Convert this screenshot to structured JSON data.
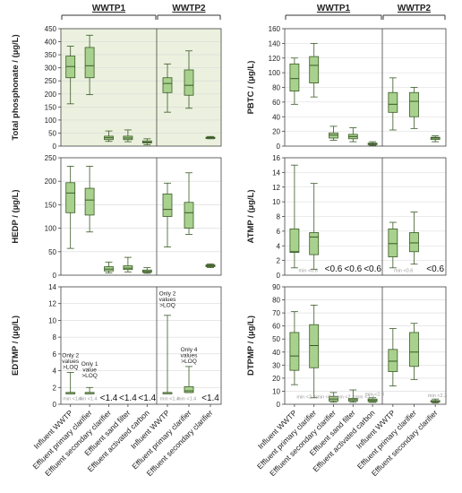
{
  "groups": {
    "left": [
      {
        "label": "WWTP1",
        "cats": 5
      },
      {
        "label": "WWTP2",
        "cats": 3
      }
    ],
    "right": [
      {
        "label": "WWTP1",
        "cats": 5
      },
      {
        "label": "WWTP2",
        "cats": 3
      }
    ]
  },
  "categories": {
    "left": [
      "Influent WWTP",
      "Effluent primary clarifier",
      "Effluent secondary clarifier",
      "Effluent sand filter",
      "Effluent activated carbon",
      "Influent WWTP",
      "Effluent primary clarifier",
      "Effluent secondary clarifier"
    ],
    "right": [
      "Influent WWTP",
      "Effluent primary clarifier",
      "Effluent secondary clarifier",
      "Effluent sand filter",
      "Effluent activated carbon",
      "Influent WWTP",
      "Effluent primary clarifier",
      "Effluent secondary clarifier"
    ]
  },
  "colors": {
    "box_fill": "#a9d18e",
    "box_stroke": "#3a5a26",
    "highlight": "#ebf1de",
    "axis": "#444444",
    "grid": "#d9d9d9",
    "note": "#9a9a9a"
  },
  "chart_data": [
    {
      "id": "total-phosphonate",
      "type": "box",
      "ylabel": "Total phosphonate / (µg/L)",
      "ylim": [
        0,
        450
      ],
      "yticks": [
        0,
        50,
        100,
        150,
        200,
        250,
        300,
        350,
        400,
        450
      ],
      "highlight": true,
      "boxes": [
        {
          "index": 0,
          "min": 162,
          "q1": 262,
          "median": 305,
          "q3": 345,
          "max": 383
        },
        {
          "index": 1,
          "min": 197,
          "q1": 262,
          "median": 308,
          "q3": 378,
          "max": 425
        },
        {
          "index": 2,
          "min": 18,
          "q1": 25,
          "median": 32,
          "q3": 38,
          "max": 58
        },
        {
          "index": 3,
          "min": 17,
          "q1": 25,
          "median": 31,
          "q3": 38,
          "max": 62
        },
        {
          "index": 4,
          "min": 5,
          "q1": 12,
          "median": 15,
          "q3": 20,
          "max": 28
        },
        {
          "index": 5,
          "min": 130,
          "q1": 205,
          "median": 240,
          "q3": 262,
          "max": 315
        },
        {
          "index": 6,
          "min": 145,
          "q1": 195,
          "median": 233,
          "q3": 292,
          "max": 365
        },
        {
          "index": 7,
          "min": 28,
          "q1": 30,
          "median": 32,
          "q3": 34,
          "max": 37
        }
      ],
      "texts": []
    },
    {
      "id": "pbtc",
      "type": "box",
      "ylabel": "PBTC / (µg/L)",
      "ylim": [
        0,
        160
      ],
      "yticks": [
        0,
        20,
        40,
        60,
        80,
        100,
        120,
        140,
        160
      ],
      "highlight": false,
      "boxes": [
        {
          "index": 0,
          "min": 57,
          "q1": 75,
          "median": 92,
          "q3": 112,
          "max": 120
        },
        {
          "index": 1,
          "min": 67,
          "q1": 86,
          "median": 110,
          "q3": 122,
          "max": 140
        },
        {
          "index": 2,
          "min": 8,
          "q1": 11,
          "median": 15,
          "q3": 18,
          "max": 27
        },
        {
          "index": 3,
          "min": 6,
          "q1": 10,
          "median": 13,
          "q3": 16,
          "max": 25
        },
        {
          "index": 4,
          "min": 1,
          "q1": 2,
          "median": 3,
          "q3": 4,
          "max": 6
        },
        {
          "index": 5,
          "min": 22,
          "q1": 46,
          "median": 57,
          "q3": 73,
          "max": 93
        },
        {
          "index": 6,
          "min": 24,
          "q1": 40,
          "median": 61,
          "q3": 73,
          "max": 80
        },
        {
          "index": 7,
          "min": 6,
          "q1": 9,
          "median": 11,
          "q3": 12,
          "max": 14
        }
      ],
      "texts": []
    },
    {
      "id": "hedp",
      "type": "box",
      "ylabel": "HEDP / (µg/L)",
      "ylim": [
        0,
        250
      ],
      "yticks": [
        0,
        50,
        100,
        150,
        200,
        250
      ],
      "highlight": false,
      "boxes": [
        {
          "index": 0,
          "min": 57,
          "q1": 133,
          "median": 175,
          "q3": 197,
          "max": 232
        },
        {
          "index": 1,
          "min": 92,
          "q1": 128,
          "median": 160,
          "q3": 185,
          "max": 232
        },
        {
          "index": 2,
          "min": 5,
          "q1": 9,
          "median": 13,
          "q3": 18,
          "max": 28
        },
        {
          "index": 3,
          "min": 7,
          "q1": 12,
          "median": 15,
          "q3": 20,
          "max": 38
        },
        {
          "index": 4,
          "min": 4,
          "q1": 6,
          "median": 8,
          "q3": 11,
          "max": 16
        },
        {
          "index": 5,
          "min": 60,
          "q1": 125,
          "median": 140,
          "q3": 173,
          "max": 196
        },
        {
          "index": 6,
          "min": 87,
          "q1": 100,
          "median": 133,
          "q3": 155,
          "max": 218
        },
        {
          "index": 7,
          "min": 16,
          "q1": 18,
          "median": 20,
          "q3": 22,
          "max": 24
        }
      ],
      "texts": []
    },
    {
      "id": "atmp",
      "type": "box",
      "ylabel": "ATMP / (µg/L)",
      "ylim": [
        0,
        16
      ],
      "yticks": [
        0,
        2,
        4,
        6,
        8,
        10,
        12,
        14,
        16
      ],
      "highlight": false,
      "boxes": [
        {
          "index": 0,
          "min": 1.0,
          "q1": 3.1,
          "median": 3.2,
          "q3": 6.3,
          "max": 15.0
        },
        {
          "index": 1,
          "min": 0.8,
          "q1": 2.8,
          "median": 5.2,
          "q3": 5.8,
          "max": 12.5
        },
        {
          "index": 5,
          "min": 1.0,
          "q1": 2.5,
          "median": 4.3,
          "q3": 6.3,
          "max": 7.2
        },
        {
          "index": 6,
          "min": 1.5,
          "q1": 3.2,
          "median": 4.4,
          "q3": 5.8,
          "max": 8.6
        }
      ],
      "texts": [
        {
          "index": 0.7,
          "y": 0.4,
          "text": "min <0.6",
          "kind": "small"
        },
        {
          "index": 5.5,
          "y": 0.4,
          "text": "min <0.6",
          "kind": "small"
        },
        {
          "index": 2,
          "y": 0.0,
          "text": "<0.6",
          "kind": "big"
        },
        {
          "index": 3,
          "y": 0.0,
          "text": "<0.6",
          "kind": "big"
        },
        {
          "index": 4,
          "y": 0.0,
          "text": "<0.6",
          "kind": "big"
        },
        {
          "index": 7,
          "y": 0.0,
          "text": "<0.6",
          "kind": "big"
        }
      ]
    },
    {
      "id": "edtmp",
      "type": "box",
      "ylabel": "EDTMP / (µg/L)",
      "ylim": [
        0,
        14
      ],
      "yticks": [
        0,
        2,
        4,
        6,
        8,
        10,
        12,
        14
      ],
      "highlight": false,
      "boxes": [
        {
          "index": 0,
          "min": 1.4,
          "q1": 1.4,
          "median": 1.4,
          "q3": 1.4,
          "max": 3.8
        },
        {
          "index": 1,
          "min": 1.4,
          "q1": 1.4,
          "median": 1.4,
          "q3": 1.4,
          "max": 2.0
        },
        {
          "index": 5,
          "min": 1.4,
          "q1": 1.4,
          "median": 1.4,
          "q3": 1.4,
          "max": 10.6
        },
        {
          "index": 6,
          "min": 1.4,
          "q1": 1.4,
          "median": 1.6,
          "q3": 2.1,
          "max": 4.5
        }
      ],
      "texts": [
        {
          "index": 0,
          "y": 5.6,
          "text": "Only 2",
          "kind": "note"
        },
        {
          "index": 0,
          "y": 4.9,
          "text": "values",
          "kind": "note"
        },
        {
          "index": 0,
          "y": 4.2,
          "text": ">LOQ",
          "kind": "note"
        },
        {
          "index": 1,
          "y": 4.6,
          "text": "Only 1",
          "kind": "note"
        },
        {
          "index": 1,
          "y": 3.9,
          "text": "value",
          "kind": "note"
        },
        {
          "index": 1,
          "y": 3.2,
          "text": ">LOQ",
          "kind": "note"
        },
        {
          "index": 5,
          "y": 13.0,
          "text": "Only 2",
          "kind": "note"
        },
        {
          "index": 5,
          "y": 12.3,
          "text": "values",
          "kind": "note"
        },
        {
          "index": 5,
          "y": 11.6,
          "text": ">LOQ",
          "kind": "note"
        },
        {
          "index": 6,
          "y": 6.3,
          "text": "Only 4",
          "kind": "note"
        },
        {
          "index": 6,
          "y": 5.6,
          "text": "values",
          "kind": "note"
        },
        {
          "index": 6,
          "y": 4.9,
          "text": ">LOQ",
          "kind": "note"
        },
        {
          "index": 0.1,
          "y": 0.5,
          "text": "min <1.4",
          "kind": "small"
        },
        {
          "index": 0.9,
          "y": 0.5,
          "text": "min <1.4",
          "kind": "small"
        },
        {
          "index": 5.1,
          "y": 0.5,
          "text": "min <1.4",
          "kind": "small"
        },
        {
          "index": 5.9,
          "y": 0.5,
          "text": "min <1.4",
          "kind": "small"
        },
        {
          "index": 2,
          "y": 0.0,
          "text": "<1.4",
          "kind": "big"
        },
        {
          "index": 3,
          "y": 0.0,
          "text": "<1.4",
          "kind": "big"
        },
        {
          "index": 4,
          "y": 0.0,
          "text": "<1.4",
          "kind": "big"
        },
        {
          "index": 7,
          "y": 0.0,
          "text": "<1.4",
          "kind": "big"
        }
      ]
    },
    {
      "id": "dtpmp",
      "type": "box",
      "ylabel": "DTPMP / (µg/L)",
      "ylim": [
        0,
        90
      ],
      "yticks": [
        0,
        10,
        20,
        30,
        40,
        50,
        60,
        70,
        80,
        90
      ],
      "highlight": false,
      "boxes": [
        {
          "index": 0,
          "min": 15,
          "q1": 26,
          "median": 37,
          "q3": 55,
          "max": 71
        },
        {
          "index": 1,
          "min": 5,
          "q1": 28,
          "median": 45,
          "q3": 61,
          "max": 76
        },
        {
          "index": 2,
          "min": 1.5,
          "q1": 2.5,
          "median": 4,
          "q3": 6,
          "max": 9
        },
        {
          "index": 3,
          "min": 1.5,
          "q1": 2.5,
          "median": 3.5,
          "q3": 4.5,
          "max": 11
        },
        {
          "index": 4,
          "min": 1.5,
          "q1": 2,
          "median": 3,
          "q3": 4,
          "max": 5
        },
        {
          "index": 5,
          "min": 14,
          "q1": 25,
          "median": 33,
          "q3": 42,
          "max": 58
        },
        {
          "index": 6,
          "min": 19,
          "q1": 29,
          "median": 40,
          "q3": 55,
          "max": 62
        },
        {
          "index": 7,
          "min": 1,
          "q1": 1.8,
          "median": 2.2,
          "q3": 2.8,
          "max": 4
        }
      ],
      "texts": [
        {
          "index": 0.6,
          "y": 4.5,
          "text": "min <2.3",
          "kind": "small"
        },
        {
          "index": 1.6,
          "y": 4.5,
          "text": "min <2.3",
          "kind": "small"
        },
        {
          "index": 2.6,
          "y": 4.5,
          "text": "min <2.3",
          "kind": "small"
        },
        {
          "index": 3.6,
          "y": 4.5,
          "text": "min <2.3",
          "kind": "small"
        },
        {
          "index": 4.1,
          "y": 6.5,
          "text": "min <2.3",
          "kind": "small"
        },
        {
          "index": 7.1,
          "y": 5.5,
          "text": "min <2.3",
          "kind": "small"
        }
      ]
    }
  ]
}
